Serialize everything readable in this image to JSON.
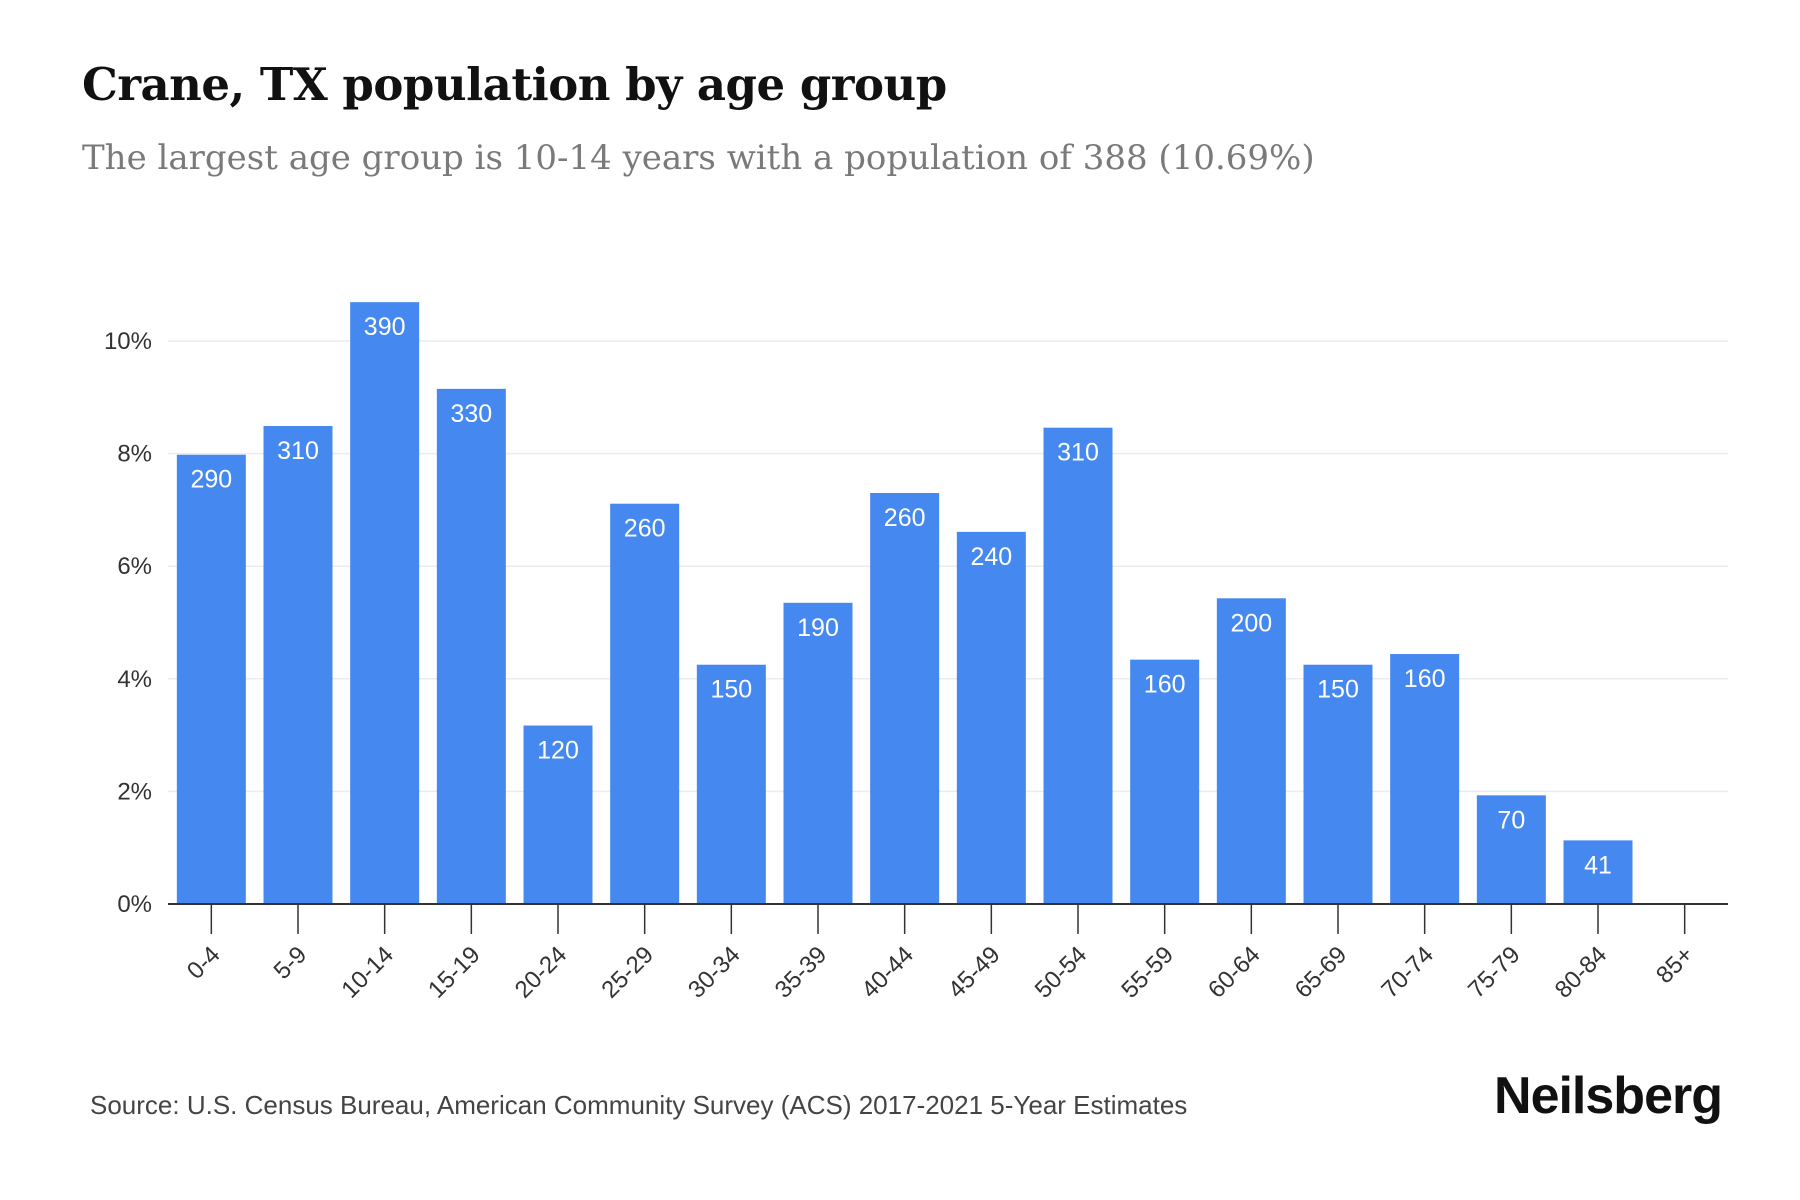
{
  "header": {
    "title": "Crane, TX population by age group",
    "subtitle": "The largest age group is 10-14 years with a population of 388 (10.69%)"
  },
  "footer": {
    "source": "Source: U.S. Census Bureau, American Community Survey (ACS) 2017-2021 5-Year Estimates",
    "brand": "Neilsberg"
  },
  "colors": {
    "bar": "#4589f0",
    "grid": "#ececec",
    "axis": "#333333"
  },
  "chart_data": {
    "type": "bar",
    "title": "Crane, TX population by age group",
    "subtitle": "The largest age group is 10-14 years with a population of 388 (10.69%)",
    "categories": [
      "0-4",
      "5-9",
      "10-14",
      "15-19",
      "20-24",
      "25-29",
      "30-34",
      "35-39",
      "40-44",
      "45-49",
      "50-54",
      "55-59",
      "60-64",
      "65-69",
      "70-74",
      "75-79",
      "80-84",
      "85+"
    ],
    "values_percent": [
      7.98,
      8.49,
      10.69,
      9.15,
      3.17,
      7.11,
      4.25,
      5.35,
      7.3,
      6.61,
      8.46,
      4.34,
      5.43,
      4.25,
      4.44,
      1.93,
      1.13,
      0
    ],
    "data_labels": [
      "290",
      "310",
      "390",
      "330",
      "120",
      "260",
      "150",
      "190",
      "260",
      "240",
      "310",
      "160",
      "200",
      "150",
      "160",
      "70",
      "41",
      ""
    ],
    "y_ticks": [
      "0%",
      "2%",
      "4%",
      "6%",
      "8%",
      "10%"
    ],
    "y_tick_values": [
      0,
      2,
      4,
      6,
      8,
      10
    ],
    "ylim": [
      0,
      11.5
    ],
    "xlabel": "",
    "ylabel": "",
    "grid": true,
    "legend": "none"
  }
}
